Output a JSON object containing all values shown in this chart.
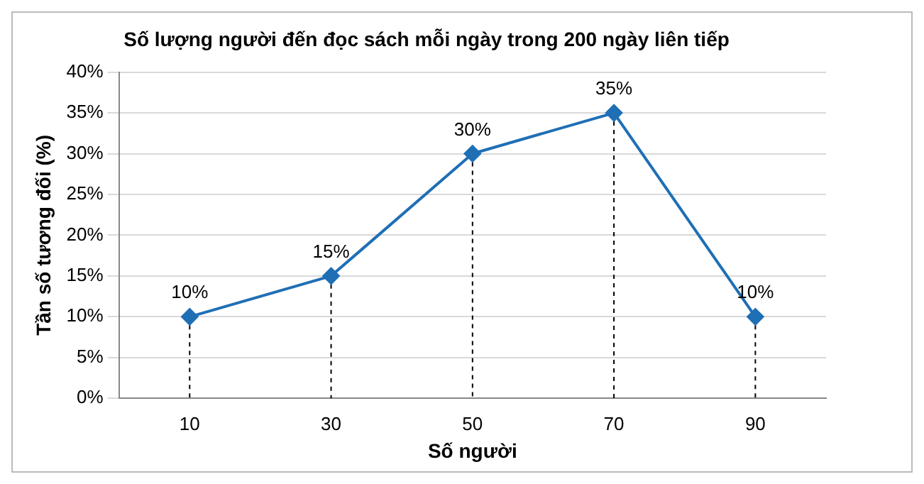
{
  "chart_data": {
    "type": "line",
    "title": "Số lượng người đến đọc sách mỗi ngày trong 200 ngày liên tiếp",
    "xlabel": "Số người",
    "ylabel": "Tần số tương đối (%)",
    "categories": [
      "10",
      "30",
      "50",
      "70",
      "90"
    ],
    "series": [
      {
        "color": "#1f6fb5",
        "values": [
          10,
          15,
          30,
          35,
          10
        ],
        "value_labels": [
          "10%",
          "15%",
          "30%",
          "35%",
          "10%"
        ]
      }
    ],
    "ylim": [
      0,
      40
    ],
    "yticks": [
      {
        "value": 0,
        "label": "0%"
      },
      {
        "value": 5,
        "label": "5%"
      },
      {
        "value": 10,
        "label": "10%"
      },
      {
        "value": 15,
        "label": "15%"
      },
      {
        "value": 20,
        "label": "20%"
      },
      {
        "value": 25,
        "label": "25%"
      },
      {
        "value": 30,
        "label": "30%"
      },
      {
        "value": 35,
        "label": "35%"
      },
      {
        "value": 40,
        "label": "40%"
      }
    ],
    "grid": true,
    "marker": "diamond",
    "line_style": "solid",
    "legend": false
  }
}
